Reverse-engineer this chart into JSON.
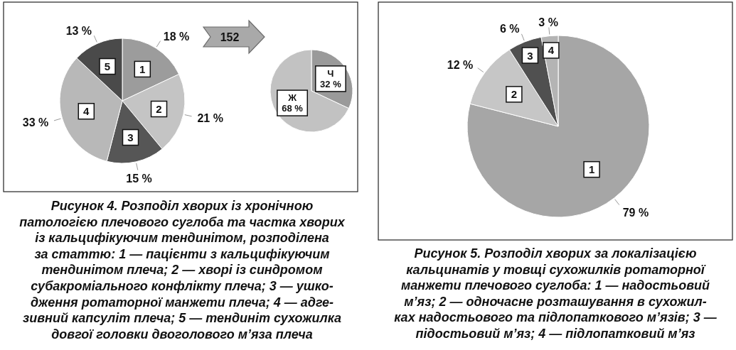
{
  "chart_data": [
    {
      "type": "pie",
      "title": "Рисунок 4. Розподіл хворих із хронічною\nпатологією плечового суглоба та частка хворих\nіз кальцифікуючим тендинітом, розподілена\nза статтю: 1 — пацієнти з кальцифікуючим\nтендинітом плеча; 2 — хворі із синдромом\nсубакроміального конфлікту плеча; 3 — ушко-\nдження ротаторної манжети плеча; 4 — адге-\nзивний капсуліт плеча; 5 — тендиніт сухожилка\nдовгої головки двоголового м’яза плеча",
      "categories": [
        "1",
        "2",
        "3",
        "4",
        "5"
      ],
      "values": [
        18,
        21,
        15,
        33,
        13
      ],
      "colors": [
        "#9c9c9c",
        "#c4c4c4",
        "#565656",
        "#b8b8b8",
        "#4a4a4a"
      ],
      "value_labels": [
        "18 %",
        "21 %",
        "15 %",
        "33 %",
        "13 %"
      ]
    },
    {
      "type": "pie",
      "categories": [
        "Ч",
        "Ж"
      ],
      "values": [
        32,
        68
      ],
      "colors": [
        "#9a9a9a",
        "#c2c2c2"
      ],
      "value_labels": [
        "32 %",
        "68 %"
      ],
      "annotations": [
        "152"
      ]
    },
    {
      "type": "pie",
      "title": "Рисунок 5. Розподіл хворих за локалізацією\nкальцинатів у товщі сухожилків ротаторної\nманжети плечового суглоба: 1 — надостьовий\nм’яз; 2 — одночасне розташування в сухожил-\nках надостьового та підлопаткового м’язів; 3 —\nпідостьовий м’яз; 4 — підлопатковий м’яз",
      "categories": [
        "1",
        "2",
        "3",
        "4"
      ],
      "values": [
        79,
        12,
        6,
        3
      ],
      "colors": [
        "#a6a6a6",
        "#c6c6c6",
        "#505050",
        "#b4b4b4"
      ],
      "value_labels": [
        "79 %",
        "12 %",
        "6 %",
        "3 %"
      ]
    }
  ]
}
